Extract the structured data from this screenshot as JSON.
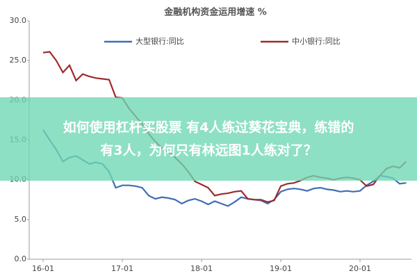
{
  "chart_data": {
    "type": "line",
    "title": "金融机构资金运用增速 %",
    "categories": [
      "16-01",
      null,
      null,
      null,
      null,
      null,
      null,
      null,
      null,
      null,
      null,
      null,
      "17-01",
      null,
      null,
      null,
      null,
      null,
      null,
      null,
      null,
      null,
      null,
      null,
      "18-01",
      null,
      null,
      null,
      null,
      null,
      null,
      null,
      null,
      null,
      null,
      null,
      "19-01",
      null,
      null,
      null,
      null,
      null,
      null,
      null,
      null,
      null,
      null,
      null,
      "20-01",
      null,
      null,
      null,
      null,
      null,
      null,
      null
    ],
    "series": [
      {
        "name": "大型银行:同比",
        "color": "#3d6db5",
        "values": [
          16.3,
          15.0,
          13.8,
          12.3,
          12.8,
          13.0,
          12.5,
          12.0,
          12.2,
          12.0,
          11.0,
          9.0,
          9.3,
          9.3,
          9.2,
          9.0,
          8.0,
          7.6,
          7.8,
          7.7,
          7.5,
          7.0,
          7.4,
          7.6,
          7.3,
          6.9,
          7.3,
          7.0,
          6.7,
          7.2,
          7.8,
          7.6,
          7.5,
          7.4,
          7.0,
          7.5,
          8.5,
          8.8,
          8.9,
          8.8,
          8.6,
          8.9,
          9.0,
          8.8,
          8.7,
          8.5,
          8.6,
          8.5,
          8.6,
          9.3,
          9.8,
          10.5,
          10.4,
          10.2,
          9.5,
          9.6
        ]
      },
      {
        "name": "中小银行:同比",
        "color": "#9e2a2b",
        "values": [
          26.0,
          26.1,
          25.0,
          23.5,
          24.4,
          22.5,
          23.3,
          23.0,
          22.8,
          22.7,
          22.6,
          20.4,
          20.3,
          19.0,
          18.0,
          17.0,
          15.8,
          14.8,
          14.0,
          13.5,
          12.8,
          12.0,
          11.0,
          9.8,
          9.4,
          9.0,
          8.0,
          8.2,
          8.3,
          8.5,
          8.6,
          7.6,
          7.5,
          7.5,
          7.2,
          7.4,
          9.2,
          9.5,
          9.6,
          9.9,
          10.3,
          10.5,
          10.3,
          10.2,
          10.0,
          10.2,
          10.3,
          10.2,
          10.0,
          9.2,
          9.4,
          10.5,
          11.4,
          11.7,
          11.5,
          12.3
        ]
      }
    ],
    "ylim": [
      0,
      30
    ],
    "yticks": [
      {
        "value": 0,
        "label": "0.0"
      },
      {
        "value": 5,
        "label": "5.0"
      },
      {
        "value": 10,
        "label": "10.0"
      },
      {
        "value": 15,
        "label": "15.0"
      },
      {
        "value": 20,
        "label": "20.0"
      },
      {
        "value": 25,
        "label": "25.0"
      },
      {
        "value": 30,
        "label": "30.0"
      }
    ],
    "legend": "top"
  },
  "overlay": {
    "lines": [
      "如何使用杠杆买股票 有4人练过葵花宝典，练错的",
      "有3人，为何只有林远图1人练对了？"
    ]
  }
}
